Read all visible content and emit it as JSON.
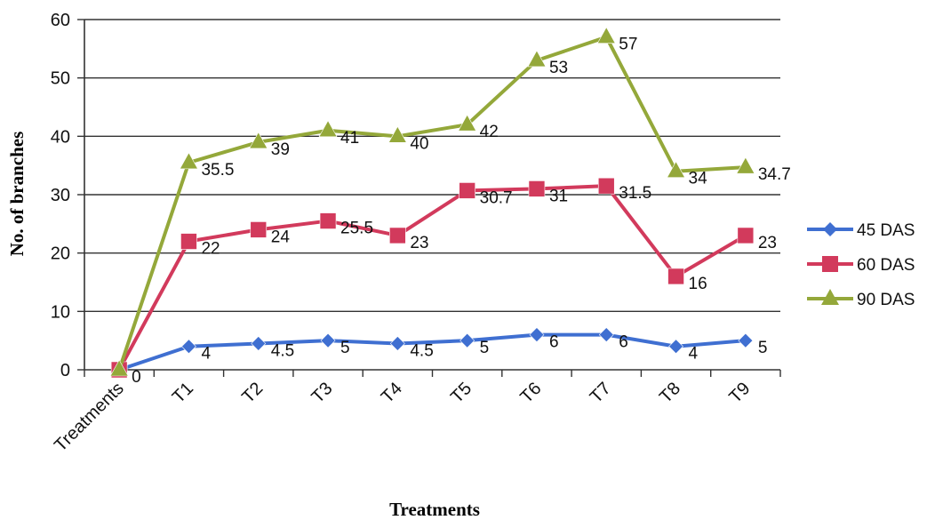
{
  "chart_data": {
    "type": "line",
    "categories": [
      "Treatments",
      "T1",
      "T2",
      "T3",
      "T4",
      "T5",
      "T6",
      "T7",
      "T8",
      "T9"
    ],
    "series": [
      {
        "name": "45 DAS",
        "values": [
          0,
          4,
          4.5,
          5,
          4.5,
          5,
          6,
          6,
          4,
          5
        ],
        "labels": [
          "",
          "4",
          "4.5",
          "5",
          "4.5",
          "5",
          "6",
          "6",
          "4",
          "5"
        ],
        "color": "#3f6fd1",
        "marker": "diamond"
      },
      {
        "name": "60 DAS",
        "values": [
          0,
          22,
          24,
          25.5,
          23,
          30.7,
          31,
          31.5,
          16,
          23
        ],
        "labels": [
          "",
          "22",
          "24",
          "25.5",
          "23",
          "30.7",
          "31",
          "31.5",
          "16",
          "23"
        ],
        "color": "#d23a5c",
        "marker": "square"
      },
      {
        "name": "90 DAS",
        "values": [
          0,
          35.5,
          39,
          41,
          40,
          42,
          53,
          57,
          34,
          34.7
        ],
        "labels": [
          "0",
          "35.5",
          "39",
          "41",
          "40",
          "42",
          "53",
          "57",
          "34",
          "34.7"
        ],
        "color": "#94a83a",
        "marker": "triangle"
      }
    ],
    "xlabel": "Treatments",
    "ylabel": "No. of branches",
    "ylim": [
      0,
      60
    ],
    "yticks": [
      "0",
      "10",
      "20",
      "30",
      "40",
      "50",
      "60"
    ],
    "grid": true,
    "legend": "right"
  }
}
